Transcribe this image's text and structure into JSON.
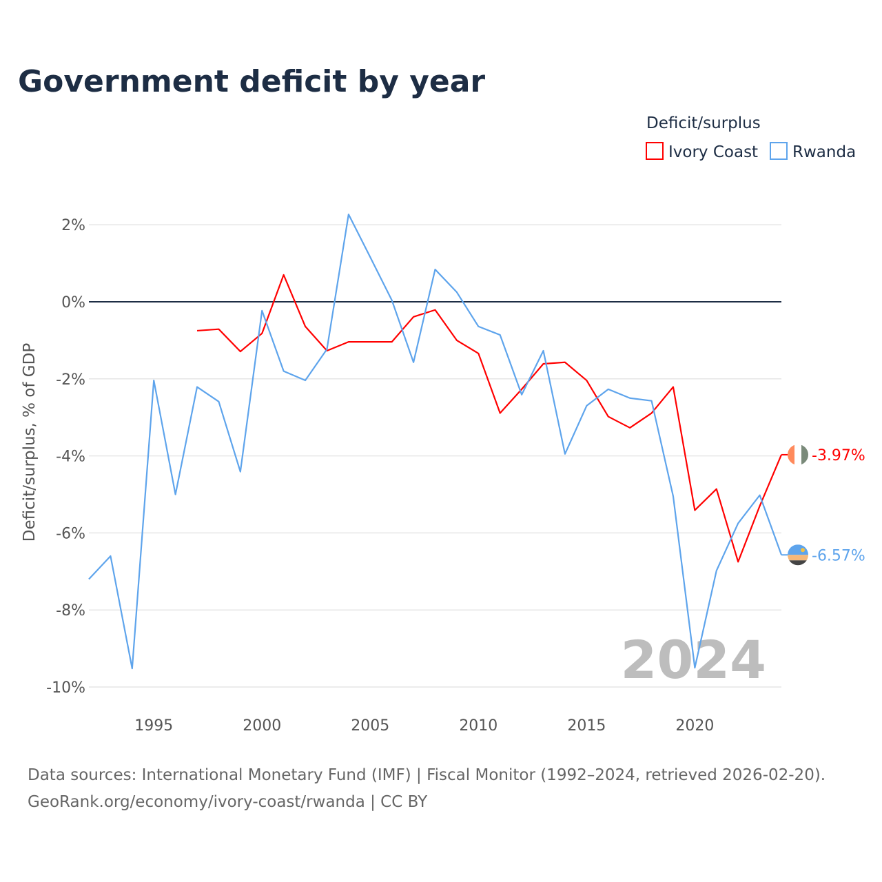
{
  "chart_data": {
    "type": "line",
    "title": "Government deficit by year",
    "xlabel": "",
    "ylabel": "Deficit/surplus, % of GDP",
    "legend_title": "Deficit/surplus",
    "legend_position": "top-right",
    "xlim": [
      1992,
      2024
    ],
    "ylim": [
      -10,
      2
    ],
    "yticks": [
      2,
      0,
      -2,
      -4,
      -6,
      -8,
      -10
    ],
    "ytick_labels": [
      "2%",
      "0%",
      "-2%",
      "-4%",
      "-6%",
      "-8%",
      "-10%"
    ],
    "xticks": [
      1995,
      2000,
      2005,
      2010,
      2015,
      2020
    ],
    "xtick_labels": [
      "1995",
      "2000",
      "2005",
      "2010",
      "2015",
      "2020"
    ],
    "grid": true,
    "year_watermark": "2024",
    "series": [
      {
        "name": "Ivory Coast",
        "color": "#ff0000",
        "end_label": "-3.97%",
        "x": [
          1997,
          1998,
          1999,
          2000,
          2001,
          2002,
          2003,
          2004,
          2005,
          2006,
          2007,
          2008,
          2009,
          2010,
          2011,
          2012,
          2013,
          2014,
          2015,
          2016,
          2017,
          2018,
          2019,
          2020,
          2021,
          2022,
          2023,
          2024
        ],
        "values": [
          -0.75,
          -0.71,
          -1.29,
          -0.82,
          0.7,
          -0.64,
          -1.27,
          -1.04,
          -1.04,
          -1.04,
          -0.39,
          -0.21,
          -1.0,
          -1.34,
          -2.89,
          -2.27,
          -1.61,
          -1.57,
          -2.04,
          -2.98,
          -3.27,
          -2.89,
          -2.21,
          -5.41,
          -4.86,
          -6.75,
          -5.3,
          -3.97
        ]
      },
      {
        "name": "Rwanda",
        "color": "#5ea4ec",
        "end_label": "-6.57%",
        "x": [
          1992,
          1993,
          1994,
          1995,
          1996,
          1997,
          1998,
          1999,
          2000,
          2001,
          2002,
          2003,
          2004,
          2005,
          2006,
          2007,
          2008,
          2009,
          2010,
          2011,
          2012,
          2013,
          2014,
          2015,
          2016,
          2017,
          2018,
          2019,
          2020,
          2021,
          2022,
          2023,
          2024
        ],
        "values": [
          -7.2,
          -6.6,
          -9.52,
          -2.04,
          -5.0,
          -2.21,
          -2.59,
          -4.41,
          -0.23,
          -1.8,
          -2.04,
          -1.23,
          2.27,
          1.16,
          0.04,
          -1.57,
          0.84,
          0.25,
          -0.64,
          -0.86,
          -2.41,
          -1.27,
          -3.95,
          -2.7,
          -2.27,
          -2.5,
          -2.57,
          -5.05,
          -9.5,
          -6.98,
          -5.75,
          -5.02,
          -6.57
        ]
      }
    ]
  },
  "footer": {
    "sources": "Data sources: International Monetary Fund (IMF) | Fiscal Monitor (1992–2024, retrieved 2026-02-20).",
    "credit": "GeoRank.org/economy/ivory-coast/rwanda | CC BY"
  }
}
